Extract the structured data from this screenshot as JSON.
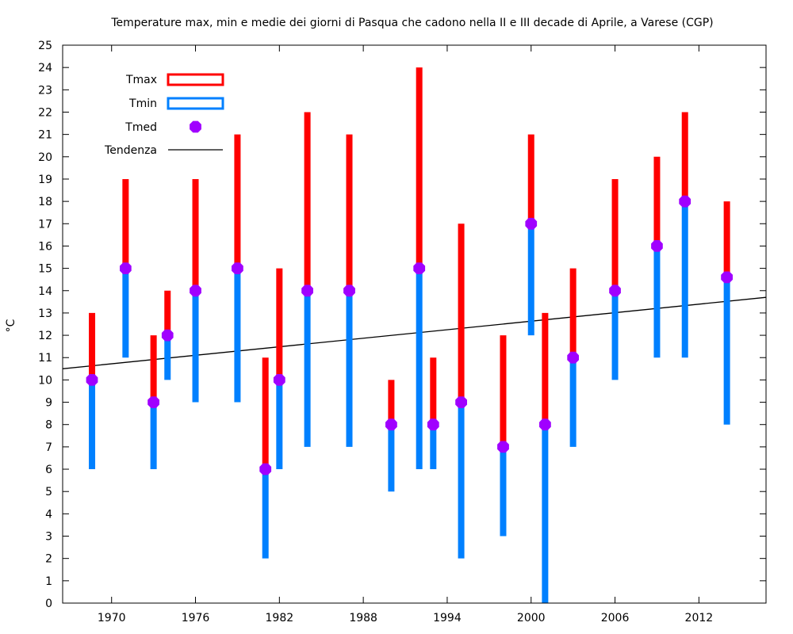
{
  "chart_data": {
    "type": "range",
    "title": "Temperature max, min e medie dei giorni di Pasqua che cadono nella II e III decade di Aprile, a Varese (CGP)",
    "xlabel": "",
    "ylabel": "°C",
    "xlim": [
      1966.5,
      2016.8
    ],
    "ylim": [
      0,
      25
    ],
    "x_ticks": [
      1970,
      1976,
      1982,
      1988,
      1994,
      2000,
      2006,
      2012
    ],
    "y_ticks": [
      0,
      1,
      2,
      3,
      4,
      5,
      6,
      7,
      8,
      9,
      10,
      11,
      12,
      13,
      14,
      15,
      16,
      17,
      18,
      19,
      20,
      21,
      22,
      23,
      24,
      25
    ],
    "grid": false,
    "legend_position": "top-left",
    "series": [
      {
        "name": "Tmax",
        "color": "#ff0000",
        "marker": "bar-upper"
      },
      {
        "name": "Tmin",
        "color": "#0080ff",
        "marker": "bar-lower"
      },
      {
        "name": "Tmed",
        "color": "#a000ff",
        "marker": "octagon"
      },
      {
        "name": "Tendenza",
        "color": "#000000",
        "marker": "line"
      }
    ],
    "points": [
      {
        "year": 1968.6,
        "tmax": 13,
        "tmin": 6,
        "tmed": 10
      },
      {
        "year": 1971.0,
        "tmax": 19,
        "tmin": 11,
        "tmed": 15
      },
      {
        "year": 1973.0,
        "tmax": 12,
        "tmin": 6,
        "tmed": 9
      },
      {
        "year": 1974.0,
        "tmax": 14,
        "tmin": 10,
        "tmed": 12
      },
      {
        "year": 1976.0,
        "tmax": 19,
        "tmin": 9,
        "tmed": 14
      },
      {
        "year": 1979.0,
        "tmax": 21,
        "tmin": 9,
        "tmed": 15
      },
      {
        "year": 1981.0,
        "tmax": 11,
        "tmin": 2,
        "tmed": 6
      },
      {
        "year": 1982.0,
        "tmax": 15,
        "tmin": 6,
        "tmed": 10
      },
      {
        "year": 1984.0,
        "tmax": 22,
        "tmin": 7,
        "tmed": 14
      },
      {
        "year": 1987.0,
        "tmax": 21,
        "tmin": 7,
        "tmed": 14
      },
      {
        "year": 1990.0,
        "tmax": 10,
        "tmin": 5,
        "tmed": 8
      },
      {
        "year": 1992.0,
        "tmax": 24,
        "tmin": 6,
        "tmed": 15
      },
      {
        "year": 1993.0,
        "tmax": 11,
        "tmin": 6,
        "tmed": 8
      },
      {
        "year": 1995.0,
        "tmax": 17,
        "tmin": 2,
        "tmed": 9
      },
      {
        "year": 1998.0,
        "tmax": 12,
        "tmin": 3,
        "tmed": 7
      },
      {
        "year": 2000.0,
        "tmax": 21,
        "tmin": 12,
        "tmed": 17
      },
      {
        "year": 2001.0,
        "tmax": 13,
        "tmin": 0,
        "tmed": 8
      },
      {
        "year": 2003.0,
        "tmax": 15,
        "tmin": 7,
        "tmed": 11
      },
      {
        "year": 2006.0,
        "tmax": 19,
        "tmin": 10,
        "tmed": 14
      },
      {
        "year": 2009.0,
        "tmax": 20,
        "tmin": 11,
        "tmed": 16
      },
      {
        "year": 2011.0,
        "tmax": 22,
        "tmin": 11,
        "tmed": 18
      },
      {
        "year": 2014.0,
        "tmax": 18,
        "tmin": 8,
        "tmed": 14.6
      }
    ],
    "trend": {
      "x": [
        1966.5,
        2016.8
      ],
      "y": [
        10.5,
        13.7
      ]
    }
  }
}
